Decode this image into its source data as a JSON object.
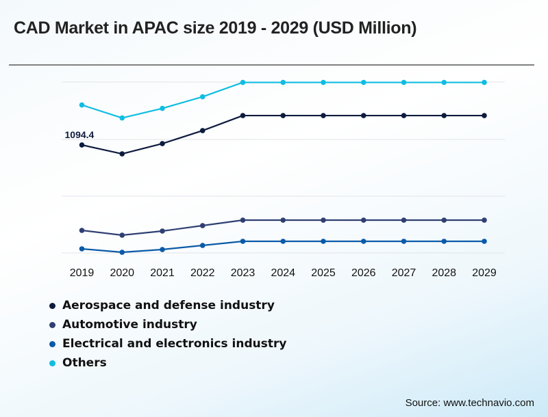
{
  "title": "CAD Market in APAC size 2019 - 2029 (USD Million)",
  "source": "Source: www.technavio.com",
  "chart_data": {
    "type": "line",
    "title": "CAD Market in APAC size 2019 - 2029 (USD Million)",
    "xlabel": "",
    "ylabel": "USD Million",
    "categories": [
      "2019",
      "2020",
      "2021",
      "2022",
      "2023",
      "2024",
      "2025",
      "2026",
      "2027",
      "2028",
      "2029"
    ],
    "ylim": [
      0,
      1732
    ],
    "gridlines": [
      0,
      575,
      1150,
      1732
    ],
    "grid": true,
    "legend_position": "bottom-left",
    "series": [
      {
        "name": "Aerospace and defense industry",
        "color": "#0d1b3e",
        "values": [
          1094.4,
          1004.3,
          1108.2,
          1239.8,
          1392.2,
          1392.2,
          1392.2,
          1392.2,
          1392.2,
          1392.2,
          1392.2
        ]
      },
      {
        "name": "Automotive industry",
        "color": "#2f3f72",
        "values": [
          228.6,
          180.1,
          221.7,
          277.1,
          332.5,
          332.5,
          332.5,
          332.5,
          332.5,
          332.5,
          332.5
        ]
      },
      {
        "name": "Electrical and electronics industry",
        "color": "#0a5aa8",
        "values": [
          41.6,
          6.9,
          34.6,
          76.2,
          117.8,
          117.8,
          117.8,
          117.8,
          117.8,
          117.8,
          117.8
        ]
      },
      {
        "name": "Others",
        "color": "#10bde2",
        "values": [
          1499.6,
          1368.0,
          1465.0,
          1582.8,
          1728.2,
          1728.2,
          1728.2,
          1728.2,
          1728.2,
          1728.2,
          1728.2
        ]
      }
    ],
    "annotations": [
      {
        "series": "Aerospace and defense industry",
        "category": "2019",
        "text": "1094.4"
      }
    ]
  }
}
